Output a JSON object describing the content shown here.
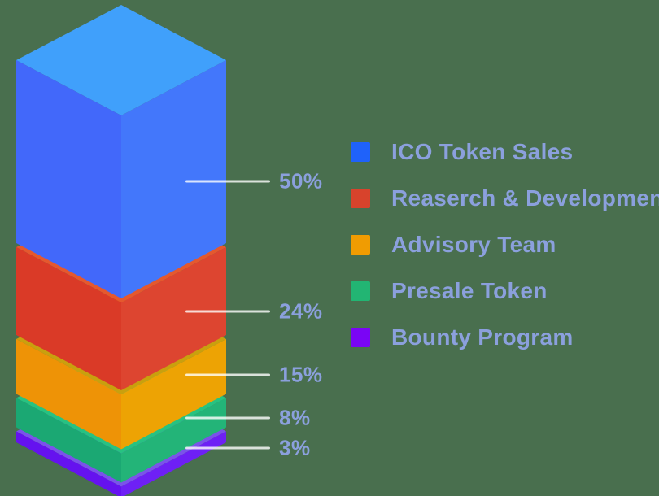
{
  "background_color": "#496f4e",
  "chart_data": {
    "type": "bar",
    "variant": "isometric-3d-stacked-tower",
    "title": "",
    "unit": "%",
    "total": 100,
    "legend_position": "right",
    "label_color": "#8BA0DD",
    "callout_line_color": "rgba(255,255,255,0.8)",
    "categories": [
      "ICO Token Sales",
      "Reaserch & Development",
      "Advisory Team",
      "Presale Token",
      "Bounty Program"
    ],
    "values": [
      50,
      24,
      15,
      8,
      3
    ],
    "segments": [
      {
        "label": "ICO Token Sales",
        "value": 50,
        "percent_label": "50%",
        "color": "#1F62FA",
        "face_top": "#40A0FB",
        "face_left": "#4268FA",
        "face_right": "#4377FB"
      },
      {
        "label": "Reaserch & Development",
        "value": 24,
        "percent_label": "24%",
        "color": "#D8432C",
        "face_top": "#E5582E",
        "face_left": "#DA3A27",
        "face_right": "#DD4530"
      },
      {
        "label": "Advisory Team",
        "value": 15,
        "percent_label": "15%",
        "color": "#F09C02",
        "face_top": "#C9A00E",
        "face_left": "#EE9306",
        "face_right": "#EDA304"
      },
      {
        "label": "Presale Token",
        "value": 8,
        "percent_label": "8%",
        "color": "#22B573",
        "face_top": "#27C281",
        "face_left": "#1BA873",
        "face_right": "#23B478"
      },
      {
        "label": "Bounty Program",
        "value": 3,
        "percent_label": "3%",
        "color": "#7A05F5",
        "face_top": "#7B52EA",
        "face_left": "#6512EF",
        "face_right": "#6E20F5"
      }
    ]
  }
}
